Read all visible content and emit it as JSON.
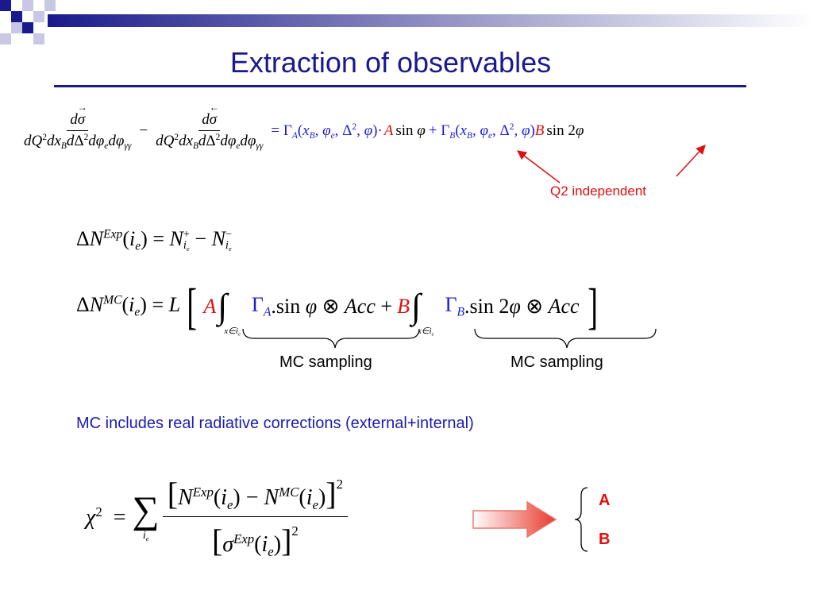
{
  "slide": {
    "title": "Extraction of observables",
    "accent_color": "#1a1a8c",
    "header_decoration": "blue-squares-gradient-bar"
  },
  "eq1": {
    "d_sigma_arrow_right": "dσ⃗",
    "d_sigma_arrow_left": "dσ⃖",
    "denominator": "dQ²dx_B dΔ²dφ_e dφ_γγ",
    "gamma_a_term": "= Γ_A(x_B, φ_e, Δ², φ)·",
    "coeff_a": "A",
    "sin_phi": "sin φ",
    "gamma_b_term": "+ Γ_B(x_B, φ_e, Δ², φ)",
    "coeff_b": "B",
    "sin_2phi": "sin 2φ"
  },
  "annotations": {
    "q2_independent": "Q2 independent",
    "mc_sampling_1": "MC sampling",
    "mc_sampling_2": "MC sampling",
    "mc_radiative": "MC includes real radiative corrections (external+internal)"
  },
  "eq2": {
    "lhs": "ΔN^Exp(i_e) = N⁺_ie − N⁻_ie"
  },
  "eq3": {
    "lhs": "ΔN^MC(i_e) = L",
    "coeff_a": "A",
    "gamma_a": "Γ_A",
    "term_a": ".sin φ ⊗ Acc +",
    "coeff_b": "B",
    "gamma_b": "Γ_B",
    "term_b": ".sin 2φ ⊗ Acc",
    "integral_sub": "x∈i_e"
  },
  "chi2": {
    "lhs": "χ² =",
    "sum_sub": "i_e",
    "numerator": "[N^Exp(i_e) − N^MC(i_e)]²",
    "denominator": "[σ^Exp(i_e)]²"
  },
  "result": {
    "param_a": "A",
    "param_b": "B",
    "arrow_color": "#e83a2e"
  }
}
